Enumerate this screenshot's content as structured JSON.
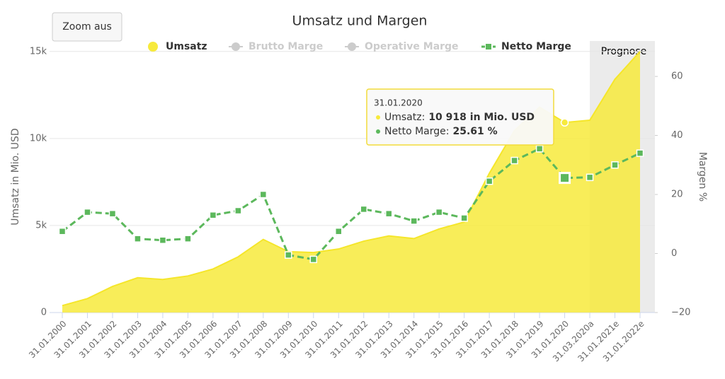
{
  "chart_data": {
    "type": "area-line",
    "title": "Umsatz und Margen",
    "button": "Zoom aus",
    "y_label": "Umsatz in Mio. USD",
    "y2_label": "Margen %",
    "categories": [
      "31.01.2000",
      "31.01.2001",
      "31.01.2002",
      "31.01.2003",
      "31.01.2004",
      "31.01.2005",
      "31.01.2006",
      "31.01.2007",
      "31.01.2008",
      "31.01.2009",
      "31.01.2010",
      "31.01.2011",
      "31.01.2012",
      "31.01.2013",
      "31.01.2014",
      "31.01.2015",
      "31.01.2016",
      "31.01.2017",
      "31.01.2018",
      "31.01.2019",
      "31.01.2020",
      "31.03.2020a",
      "31.01.2021e",
      "31.01.2022e"
    ],
    "series": [
      {
        "name": "Umsatz",
        "color": "#f7ea3c",
        "values": [
          400,
          800,
          1500,
          2000,
          1900,
          2100,
          2500,
          3200,
          4200,
          3500,
          3450,
          3650,
          4100,
          4400,
          4250,
          4800,
          5200,
          8000,
          10450,
          11800,
          10918,
          11050,
          13400,
          15000
        ]
      },
      {
        "name": "Netto Marge",
        "color": "#5cb85c",
        "axis": "y2",
        "values": [
          7.5,
          14,
          13.5,
          5,
          4.5,
          5,
          13,
          14.5,
          20,
          -0.5,
          -2,
          7.5,
          15,
          13.5,
          11,
          14,
          12,
          24.5,
          31.5,
          35.5,
          25.61,
          25.8,
          30,
          34
        ]
      }
    ],
    "hidden_series": [
      {
        "name": "Brutto Marge",
        "color": "#cccccc"
      },
      {
        "name": "Operative Marge",
        "color": "#cccccc"
      }
    ],
    "ylim": [
      0,
      15600
    ],
    "yticks": [
      0,
      {
        "value": 5000,
        "label": "5k"
      },
      {
        "value": 10000,
        "label": "10k"
      },
      {
        "value": 15000,
        "label": "15k"
      }
    ],
    "y2lim": [
      -20,
      72
    ],
    "y2ticks": [
      {
        "value": -20,
        "label": "−20"
      },
      0,
      20,
      40,
      60
    ],
    "grid": true,
    "band": {
      "label": "Prognose",
      "from_category": "31.03.2020a"
    },
    "tooltip": {
      "title": "31.01.2020",
      "lines": [
        {
          "label": "Umsatz:",
          "value": "10 918 in Mio. USD"
        },
        {
          "label": "Netto Marge:",
          "value": "25.61 %"
        }
      ]
    }
  }
}
